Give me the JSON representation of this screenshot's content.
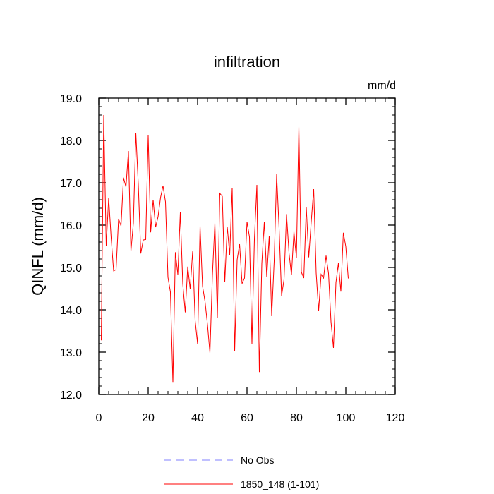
{
  "chart_data": {
    "type": "line",
    "title": "infiltration",
    "units_label": "mm/d",
    "xlabel": "",
    "ylabel": "QINFL  (mm/d)",
    "xlim": [
      0,
      120
    ],
    "ylim": [
      12.0,
      19.0
    ],
    "x_ticks": [
      0,
      20,
      40,
      60,
      80,
      100,
      120
    ],
    "x_tick_labels": [
      "0",
      "20",
      "40",
      "60",
      "80",
      "100",
      "120"
    ],
    "y_ticks": [
      12.0,
      13.0,
      14.0,
      15.0,
      16.0,
      17.0,
      18.0,
      19.0
    ],
    "y_tick_labels": [
      "12.0",
      "13.0",
      "14.0",
      "15.0",
      "16.0",
      "17.0",
      "18.0",
      "19.0"
    ],
    "legend": [
      {
        "label": "No Obs",
        "color": "#8080ff",
        "style": "dashed"
      },
      {
        "label": "1850_148 (1-101)",
        "color": "#ff0000",
        "style": "solid"
      }
    ],
    "series": [
      {
        "name": "1850_148 (1-101)",
        "color": "#ff0000",
        "x": [
          1,
          2,
          3,
          4,
          5,
          6,
          7,
          8,
          9,
          10,
          11,
          12,
          13,
          14,
          15,
          16,
          17,
          18,
          19,
          20,
          21,
          22,
          23,
          24,
          25,
          26,
          27,
          28,
          29,
          30,
          31,
          32,
          33,
          34,
          35,
          36,
          37,
          38,
          39,
          40,
          41,
          42,
          43,
          44,
          45,
          46,
          47,
          48,
          49,
          50,
          51,
          52,
          53,
          54,
          55,
          56,
          57,
          58,
          59,
          60,
          61,
          62,
          63,
          64,
          65,
          66,
          67,
          68,
          69,
          70,
          71,
          72,
          73,
          74,
          75,
          76,
          77,
          78,
          79,
          80,
          81,
          82,
          83,
          84,
          85,
          86,
          87,
          88,
          89,
          90,
          91,
          92,
          93,
          94,
          95,
          96,
          97,
          98,
          99,
          100,
          101
        ],
        "values": [
          13.28,
          18.6,
          15.5,
          16.65,
          15.7,
          14.92,
          14.95,
          16.15,
          15.98,
          17.12,
          16.9,
          17.75,
          15.38,
          16.05,
          18.18,
          16.95,
          15.33,
          15.65,
          15.66,
          18.12,
          15.83,
          16.6,
          15.95,
          16.2,
          16.65,
          16.93,
          16.55,
          14.77,
          14.42,
          12.28,
          15.36,
          14.83,
          16.3,
          14.61,
          13.94,
          15.02,
          14.49,
          15.38,
          13.75,
          13.19,
          15.98,
          14.56,
          14.2,
          13.65,
          12.98,
          14.82,
          16.05,
          13.8,
          16.75,
          16.68,
          14.65,
          15.96,
          15.3,
          16.88,
          13.02,
          15.18,
          15.55,
          14.62,
          14.75,
          16.08,
          15.72,
          13.2,
          15.67,
          16.95,
          12.53,
          15.1,
          16.07,
          14.77,
          15.75,
          13.85,
          15.15,
          17.2,
          15.92,
          14.33,
          14.72,
          16.26,
          15.35,
          14.82,
          15.85,
          15.23,
          18.33,
          14.89,
          14.75,
          16.42,
          15.24,
          16.08,
          16.85,
          14.87,
          13.98,
          14.84,
          14.75,
          15.28,
          14.86,
          13.72,
          13.1,
          14.64,
          15.1,
          14.43,
          15.82,
          15.49,
          14.74
        ]
      }
    ]
  }
}
